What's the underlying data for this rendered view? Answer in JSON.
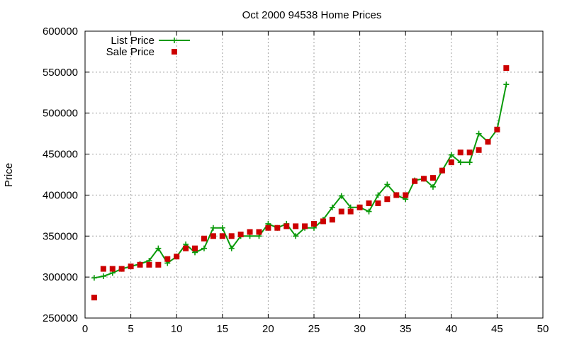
{
  "chart_data": {
    "type": "line",
    "title": "Oct 2000 94538 Home Prices",
    "xlabel": "",
    "ylabel": "Price",
    "xlim": [
      0,
      50
    ],
    "ylim": [
      250000,
      600000
    ],
    "xticks": [
      0,
      5,
      10,
      15,
      20,
      25,
      30,
      35,
      40,
      45,
      50
    ],
    "yticks": [
      250000,
      300000,
      350000,
      400000,
      450000,
      500000,
      550000,
      600000
    ],
    "grid": true,
    "legend_position": "top-left",
    "series": [
      {
        "name": "List Price",
        "style": "line-plus",
        "color": "#0a9a0a",
        "x": [
          1,
          2,
          3,
          4,
          5,
          6,
          7,
          8,
          9,
          10,
          11,
          12,
          13,
          14,
          15,
          16,
          17,
          18,
          19,
          20,
          21,
          22,
          23,
          24,
          25,
          26,
          27,
          28,
          29,
          30,
          31,
          32,
          33,
          34,
          35,
          36,
          37,
          38,
          39,
          40,
          41,
          42,
          43,
          44,
          45,
          46
        ],
        "y": [
          299000,
          301000,
          305000,
          310000,
          313000,
          316000,
          320000,
          335000,
          317000,
          325000,
          340000,
          330000,
          335000,
          360000,
          360000,
          335000,
          350000,
          350000,
          350000,
          365000,
          360000,
          365000,
          350000,
          360000,
          360000,
          370000,
          385000,
          399000,
          385000,
          385000,
          380000,
          400000,
          413000,
          400000,
          395000,
          418000,
          420000,
          410000,
          430000,
          449000,
          440000,
          440000,
          475000,
          465000,
          480000,
          535000
        ]
      },
      {
        "name": "Sale Price",
        "style": "square",
        "color": "#cc0000",
        "x": [
          1,
          2,
          3,
          4,
          5,
          6,
          7,
          8,
          9,
          10,
          11,
          12,
          13,
          14,
          15,
          16,
          17,
          18,
          19,
          20,
          21,
          22,
          23,
          24,
          25,
          26,
          27,
          28,
          29,
          30,
          31,
          32,
          33,
          34,
          35,
          36,
          37,
          38,
          39,
          40,
          41,
          42,
          43,
          44,
          45,
          46
        ],
        "y": [
          275000,
          310000,
          310000,
          310000,
          313000,
          315000,
          315000,
          315000,
          322000,
          325000,
          335000,
          335000,
          347000,
          350000,
          350000,
          350000,
          352000,
          355000,
          355000,
          360000,
          360000,
          362000,
          362000,
          362000,
          365000,
          368000,
          370000,
          380000,
          380000,
          385000,
          390000,
          390000,
          395000,
          400000,
          400000,
          417000,
          420000,
          421000,
          430000,
          440000,
          452000,
          452000,
          455000,
          465000,
          480000,
          555000
        ]
      }
    ]
  }
}
